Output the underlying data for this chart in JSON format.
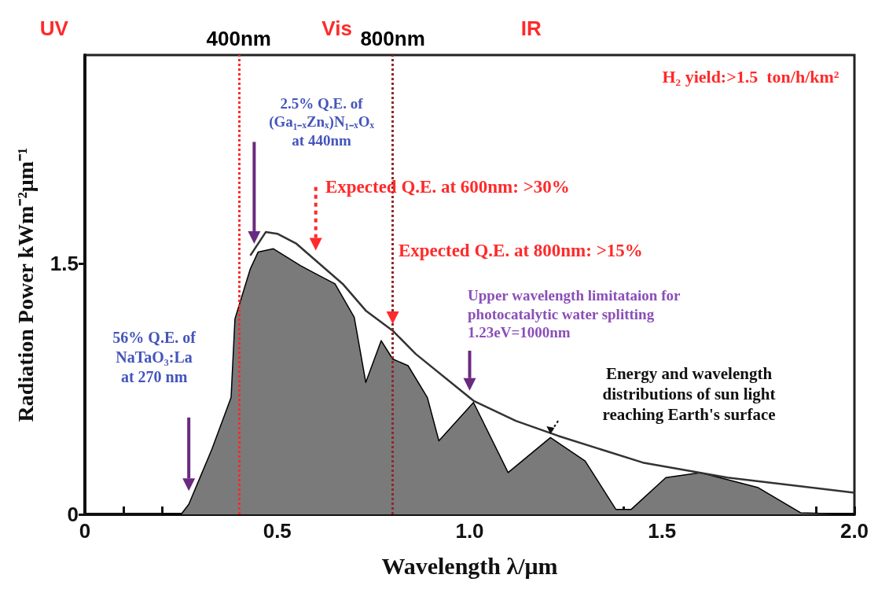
{
  "chart_data": {
    "type": "area",
    "xlabel": "Wavelength λ/μm",
    "ylabel": "Radiation Power kWm⁻²μm⁻¹",
    "xlim": [
      0,
      2.0
    ],
    "xticks": [
      0,
      {
        "value": 0.1,
        "label": null
      },
      {
        "value": 0.2,
        "label": null
      },
      {
        "value": 0.3,
        "label": null
      },
      {
        "value": 0.4,
        "label": null
      },
      0.5,
      {
        "value": 0.6,
        "label": null
      },
      {
        "value": 0.7,
        "label": null
      },
      {
        "value": 0.8,
        "label": null
      },
      {
        "value": 0.9,
        "label": null
      },
      {
        "value": 1.0,
        "label": "1.0"
      },
      {
        "value": 1.1,
        "label": null
      },
      {
        "value": 1.2,
        "label": null
      },
      {
        "value": 1.3,
        "label": null
      },
      {
        "value": 1.4,
        "label": null
      },
      1.5,
      {
        "value": 1.6,
        "label": null
      },
      {
        "value": 1.7,
        "label": null
      },
      {
        "value": 1.8,
        "label": null
      },
      {
        "value": 1.9,
        "label": null
      },
      {
        "value": 2.0,
        "label": "2.0"
      }
    ],
    "ylim": [
      0,
      2.75
    ],
    "yticks": [
      0,
      1.5
    ],
    "grid": false,
    "series": [
      {
        "color": "#7a7a7a",
        "x": [
          0.2,
          0.25,
          0.27,
          0.33,
          0.38,
          0.39,
          0.43,
          0.45,
          0.49,
          0.56,
          0.6,
          0.65,
          0.7,
          0.73,
          0.77,
          0.8,
          0.84,
          0.89,
          0.92,
          1.01,
          1.1,
          1.21,
          1.3,
          1.38,
          1.42,
          1.51,
          1.6,
          1.75,
          1.86,
          2.0
        ],
        "values": [
          0,
          0,
          0.06,
          0.39,
          0.7,
          1.17,
          1.47,
          1.57,
          1.59,
          1.49,
          1.44,
          1.38,
          1.18,
          0.79,
          1.04,
          0.93,
          0.89,
          0.7,
          0.44,
          0.67,
          0.25,
          0.46,
          0.32,
          0.03,
          0.03,
          0.22,
          0.25,
          0.16,
          0.01,
          0
        ]
      },
      {
        "type": "line",
        "color": "#333333",
        "x": [
          0.43,
          0.47,
          0.5,
          0.55,
          0.6,
          0.67,
          0.73,
          0.8,
          0.86,
          1.01,
          1.12,
          1.23,
          1.45,
          1.67,
          2.0
        ],
        "values": [
          1.55,
          1.69,
          1.68,
          1.62,
          1.52,
          1.38,
          1.22,
          1.1,
          0.96,
          0.68,
          0.56,
          0.47,
          0.31,
          0.22,
          0.13
        ]
      }
    ],
    "ref_lines": [
      {
        "axis": "x",
        "value": 0.4,
        "label": "400nm",
        "color": "#ff2a2a",
        "line_style": "dotted"
      },
      {
        "axis": "x",
        "value": 0.8,
        "label": "800nm",
        "color": "#8b2a2a",
        "line_style": "dotted"
      }
    ],
    "annotations": [
      "UV",
      "Vis",
      "IR",
      "H₂ yield:>1.5  ton/h/km²",
      "2.5% Q.E. of\n(Ga₁₋ₓZnₓ)N₁₋ₓOₓ\nat 440nm",
      "56% Q.E. of\nNaTaO₃:La\nat 270 nm",
      "Expected Q.E. at 600nm: >30%",
      "Expected Q.E. at 800nm: >15%",
      "Upper wavelength limitataion for\nphotocatalytic water splitting\n1.23eV=1000nm",
      "Energy and wavelength\ndistributions of sun light\nreaching Earth's surface"
    ]
  }
}
